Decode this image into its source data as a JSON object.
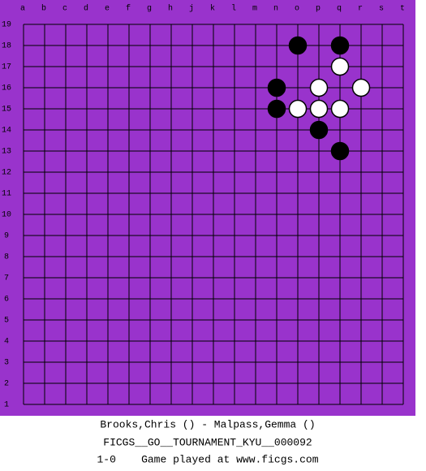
{
  "board": {
    "columns": [
      "a",
      "b",
      "c",
      "d",
      "e",
      "f",
      "g",
      "h",
      "j",
      "k",
      "l",
      "m",
      "n",
      "o",
      "p",
      "q",
      "r",
      "s",
      "t"
    ],
    "rows": [
      19,
      18,
      17,
      16,
      15,
      14,
      13,
      12,
      11,
      10,
      9,
      8,
      7,
      6,
      5,
      4,
      3,
      2,
      1
    ],
    "stones": [
      {
        "color": "black",
        "col": "o",
        "row": 18
      },
      {
        "color": "black",
        "col": "q",
        "row": 18
      },
      {
        "color": "white",
        "col": "q",
        "row": 17
      },
      {
        "color": "black",
        "col": "n",
        "row": 16
      },
      {
        "color": "white",
        "col": "p",
        "row": 16
      },
      {
        "color": "white",
        "col": "r",
        "row": 16
      },
      {
        "color": "black",
        "col": "n",
        "row": 15
      },
      {
        "color": "white",
        "col": "o",
        "row": 15
      },
      {
        "color": "white",
        "col": "p",
        "row": 15
      },
      {
        "color": "white",
        "col": "q",
        "row": 15
      },
      {
        "color": "black",
        "col": "p",
        "row": 14
      },
      {
        "color": "black",
        "col": "q",
        "row": 13
      }
    ]
  },
  "caption": {
    "players": "Brooks,Chris () - Malpass,Gemma ()",
    "event": "FICGS__GO__TOURNAMENT_KYU__000092",
    "result_line": "1-0    Game played at www.ficgs.com"
  }
}
